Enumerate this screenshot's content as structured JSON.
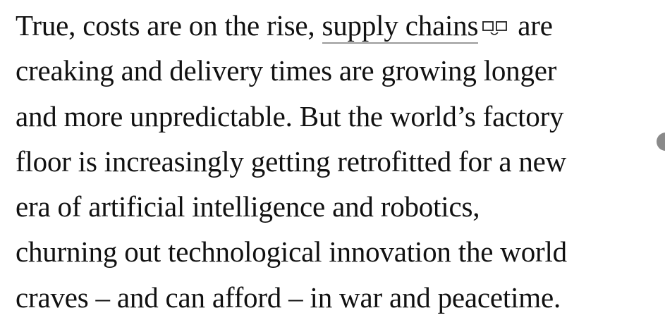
{
  "article": {
    "link_text": "supply chains",
    "link_icon": "related-topic-icon",
    "lines": [
      "True, costs are on the rise, ",
      " are",
      "creaking and delivery times are growing longer",
      "and more unpredictable. But the world’s factory",
      "floor is increasingly getting retrofitted for a new",
      "era of artificial intelligence and robotics,",
      "churning out technological innovation the world",
      "craves – and can afford – in war and peacetime."
    ]
  }
}
